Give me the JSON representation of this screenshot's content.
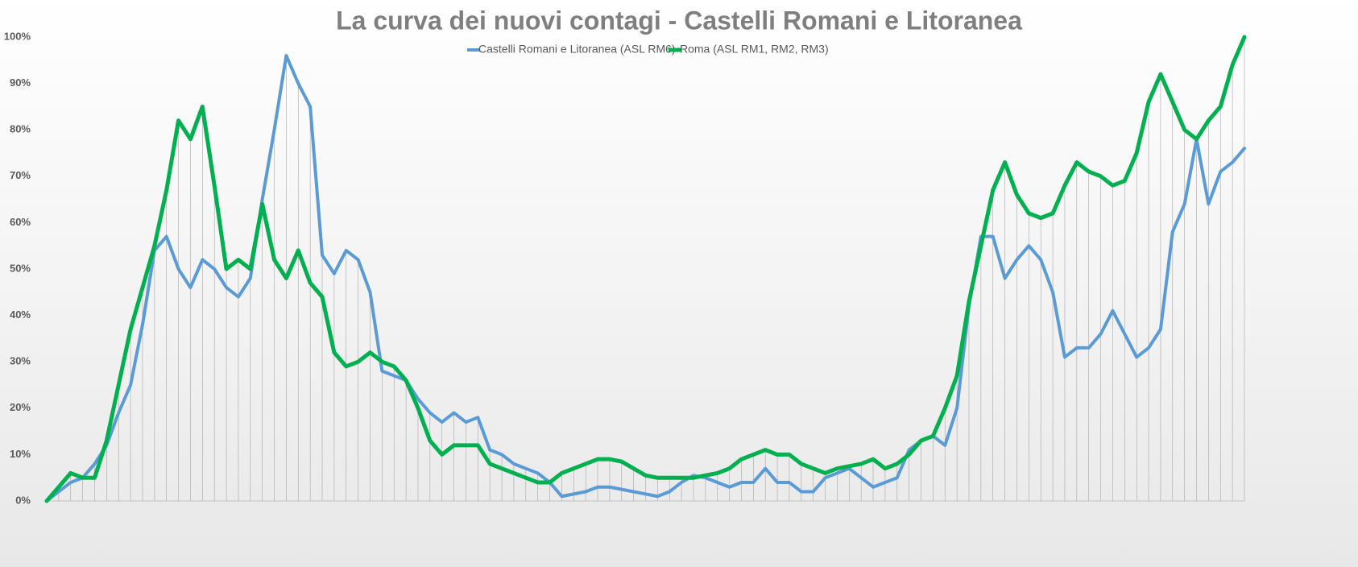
{
  "chart_data": {
    "type": "line",
    "title": "La curva dei nuovi contagi - Castelli Romani e Litoranea",
    "categories": [
      null,
      null,
      null,
      null,
      null,
      null,
      null,
      null,
      null,
      null,
      null,
      null,
      null,
      null,
      null,
      null,
      null,
      null,
      null,
      null,
      null,
      null,
      null,
      null,
      null,
      null,
      null,
      null,
      null,
      null,
      null,
      null,
      null,
      null,
      null,
      null,
      null,
      null,
      null,
      null,
      null,
      null,
      null,
      null,
      null,
      null,
      null,
      null,
      null,
      null,
      null,
      null,
      null,
      null,
      null,
      null,
      null,
      null,
      null,
      null,
      null,
      null,
      null,
      null,
      null,
      null,
      null,
      null,
      null,
      null,
      null,
      null,
      null,
      null,
      null,
      null,
      null,
      null,
      null,
      null,
      null,
      null,
      null,
      null,
      null,
      null,
      null,
      null,
      null,
      null,
      null,
      null,
      null,
      null,
      null,
      null,
      null,
      null,
      null,
      null,
      null
    ],
    "series": [
      {
        "name": "Castelli Romani e Litoranea (ASL RM6)",
        "color": "#5b9bd5",
        "values": [
          0,
          2,
          4,
          5,
          8,
          12,
          19,
          25,
          38,
          54,
          57,
          50,
          46,
          52,
          50,
          46,
          44,
          48,
          65,
          80,
          96,
          90,
          85,
          53,
          49,
          54,
          52,
          45,
          28,
          27,
          26,
          22,
          19,
          17,
          19,
          17,
          18,
          11,
          10,
          8,
          7,
          6,
          4,
          1,
          1.5,
          2,
          3,
          3,
          2.5,
          2,
          1.5,
          1,
          2,
          4,
          5.5,
          5,
          4,
          3,
          4,
          4,
          7,
          4,
          4,
          2,
          2,
          5,
          6,
          7,
          5,
          3,
          4,
          5,
          11,
          13,
          14,
          12,
          20,
          42,
          57,
          57,
          48,
          52,
          55,
          52,
          45,
          31,
          33,
          33,
          36,
          41,
          36,
          31,
          33,
          37,
          58,
          64,
          78,
          64,
          71,
          73,
          76
        ]
      },
      {
        "name": "Roma (ASL RM1, RM2, RM3)",
        "color": "#00b050",
        "values": [
          0,
          3,
          6,
          5,
          5,
          13,
          25,
          37,
          46,
          55,
          67,
          82,
          78,
          85,
          68,
          50,
          52,
          50,
          64,
          52,
          48,
          54,
          47,
          44,
          32,
          29,
          30,
          32,
          30,
          29,
          26,
          20,
          13,
          10,
          12,
          12,
          12,
          8,
          7,
          6,
          5,
          4,
          4,
          6,
          7,
          8,
          9,
          9,
          8.5,
          7,
          5.5,
          5,
          5,
          5,
          5,
          5.5,
          6,
          7,
          9,
          10,
          11,
          10,
          10,
          8,
          7,
          6,
          7,
          7.5,
          8,
          9,
          7,
          8,
          10,
          13,
          14,
          20,
          27,
          43,
          55,
          67,
          73,
          66,
          62,
          61,
          62,
          68,
          73,
          71,
          70,
          68,
          69,
          75,
          86,
          92,
          86,
          80,
          78,
          82,
          85,
          94,
          100
        ]
      }
    ],
    "ylim": [
      0,
      100
    ],
    "yticks": [
      {
        "value": 0,
        "label": "0%"
      },
      {
        "value": 10,
        "label": "10%"
      },
      {
        "value": 20,
        "label": "20%"
      },
      {
        "value": 30,
        "label": "30%"
      },
      {
        "value": 40,
        "label": "40%"
      },
      {
        "value": 50,
        "label": "50%"
      },
      {
        "value": 60,
        "label": "60%"
      },
      {
        "value": 70,
        "label": "70%"
      },
      {
        "value": 80,
        "label": "80%"
      },
      {
        "value": 90,
        "label": "90%"
      },
      {
        "value": 100,
        "label": "100%"
      }
    ],
    "legend": "top"
  }
}
